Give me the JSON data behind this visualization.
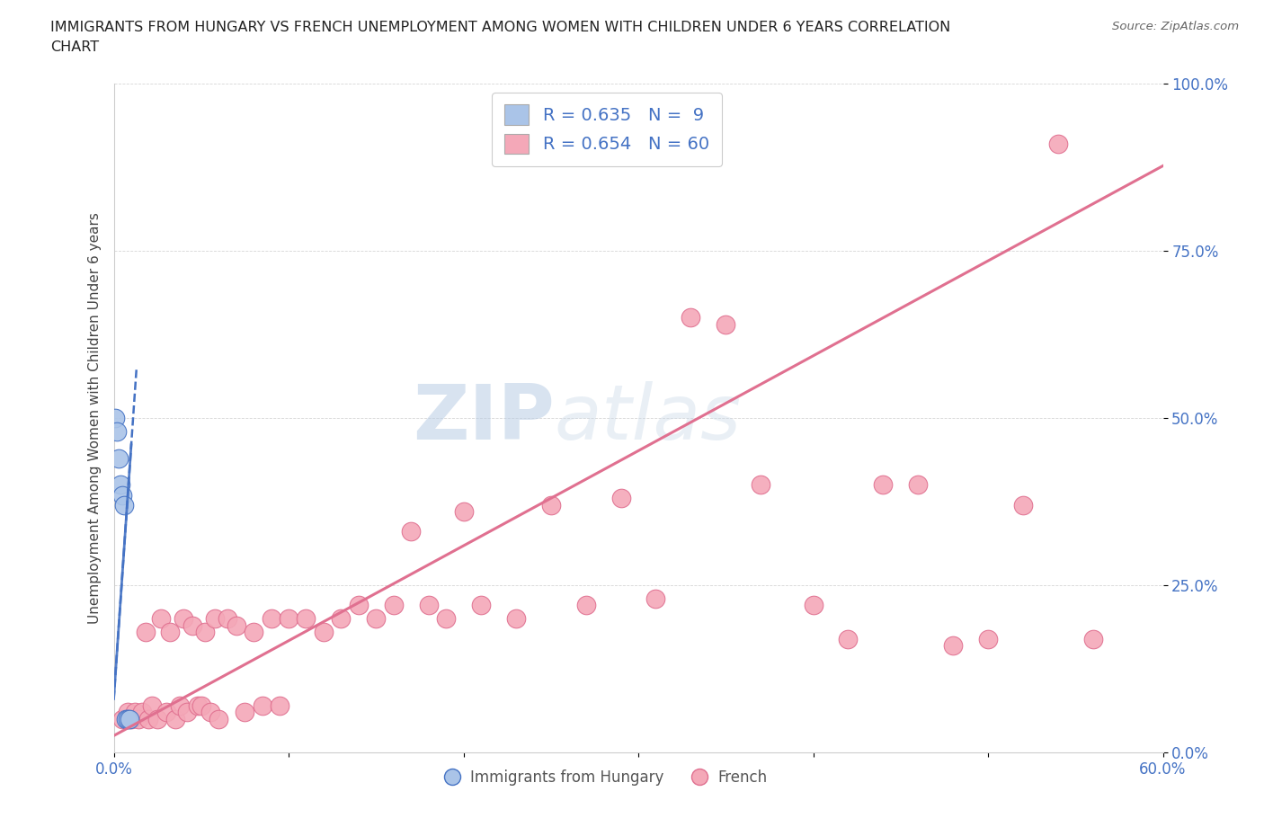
{
  "title_line1": "IMMIGRANTS FROM HUNGARY VS FRENCH UNEMPLOYMENT AMONG WOMEN WITH CHILDREN UNDER 6 YEARS CORRELATION",
  "title_line2": "CHART",
  "source_text": "Source: ZipAtlas.com",
  "ylabel": "Unemployment Among Women with Children Under 6 years",
  "xlim": [
    0.0,
    0.6
  ],
  "ylim": [
    0.0,
    1.0
  ],
  "xticks": [
    0.0,
    0.1,
    0.2,
    0.3,
    0.4,
    0.5,
    0.6
  ],
  "xticklabels": [
    "0.0%",
    "",
    "",
    "",
    "",
    "",
    "60.0%"
  ],
  "yticks": [
    0.0,
    0.25,
    0.5,
    0.75,
    1.0
  ],
  "yticklabels": [
    "0.0%",
    "25.0%",
    "50.0%",
    "75.0%",
    "100.0%"
  ],
  "hungary_color": "#aac4e8",
  "french_color": "#f4a8b8",
  "hungary_line_color": "#4472c4",
  "french_line_color": "#e07090",
  "hungary_R": 0.635,
  "hungary_N": 9,
  "french_R": 0.654,
  "french_N": 60,
  "watermark_zip": "ZIP",
  "watermark_atlas": "atlas",
  "legend_label_hungary": "Immigrants from Hungary",
  "legend_label_french": "French",
  "hungary_points_x": [
    0.001,
    0.002,
    0.003,
    0.004,
    0.005,
    0.006,
    0.007,
    0.008,
    0.009
  ],
  "hungary_points_y": [
    0.5,
    0.48,
    0.44,
    0.4,
    0.385,
    0.37,
    0.05,
    0.05,
    0.05
  ],
  "french_points_x": [
    0.005,
    0.008,
    0.01,
    0.012,
    0.014,
    0.016,
    0.018,
    0.02,
    0.022,
    0.025,
    0.027,
    0.03,
    0.032,
    0.035,
    0.038,
    0.04,
    0.042,
    0.045,
    0.048,
    0.05,
    0.052,
    0.055,
    0.058,
    0.06,
    0.065,
    0.07,
    0.075,
    0.08,
    0.085,
    0.09,
    0.095,
    0.1,
    0.11,
    0.12,
    0.13,
    0.14,
    0.15,
    0.16,
    0.17,
    0.18,
    0.19,
    0.2,
    0.21,
    0.23,
    0.25,
    0.27,
    0.29,
    0.31,
    0.33,
    0.35,
    0.37,
    0.4,
    0.42,
    0.44,
    0.46,
    0.48,
    0.5,
    0.52,
    0.54,
    0.56
  ],
  "french_points_y": [
    0.05,
    0.06,
    0.05,
    0.06,
    0.05,
    0.06,
    0.18,
    0.05,
    0.07,
    0.05,
    0.2,
    0.06,
    0.18,
    0.05,
    0.07,
    0.2,
    0.06,
    0.19,
    0.07,
    0.07,
    0.18,
    0.06,
    0.2,
    0.05,
    0.2,
    0.19,
    0.06,
    0.18,
    0.07,
    0.2,
    0.07,
    0.2,
    0.2,
    0.18,
    0.2,
    0.22,
    0.2,
    0.22,
    0.33,
    0.22,
    0.2,
    0.36,
    0.22,
    0.2,
    0.37,
    0.22,
    0.38,
    0.23,
    0.65,
    0.64,
    0.4,
    0.22,
    0.17,
    0.4,
    0.4,
    0.16,
    0.17,
    0.37,
    0.91,
    0.17
  ],
  "french_line_slope": 1.42,
  "french_line_intercept": 0.025,
  "hungary_line_slope": 38.0,
  "hungary_line_intercept": 0.08
}
